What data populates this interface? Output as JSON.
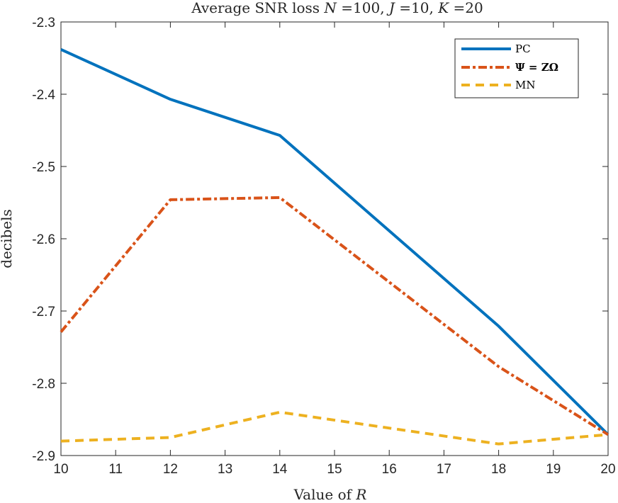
{
  "chart_data": {
    "type": "line",
    "title": "Average SNR loss N =100, J =10, K =20",
    "xlabel": "Value of R",
    "ylabel": "decibels",
    "xlim": [
      10,
      20
    ],
    "ylim": [
      -2.9,
      -2.3
    ],
    "xticks": [
      10,
      11,
      12,
      13,
      14,
      15,
      16,
      17,
      18,
      19,
      20
    ],
    "yticks": [
      -2.3,
      -2.4,
      -2.5,
      -2.6,
      -2.7,
      -2.8,
      -2.9
    ],
    "ytick_labels": [
      "-2.3",
      "-2.4",
      "-2.5",
      "-2.6",
      "-2.7",
      "-2.8",
      "-2.9"
    ],
    "x": [
      10,
      12,
      14,
      18,
      20
    ],
    "series": [
      {
        "name": "PC",
        "values": [
          -2.338,
          -2.407,
          -2.457,
          -2.721,
          -2.871
        ],
        "color": "#0072BD",
        "style": "solid"
      },
      {
        "name": "Ψ = ZΩ",
        "values": [
          -2.729,
          -2.546,
          -2.543,
          -2.777,
          -2.871
        ],
        "color": "#D95319",
        "style": "dashdot"
      },
      {
        "name": "MN",
        "values": [
          -2.88,
          -2.875,
          -2.84,
          -2.884,
          -2.871
        ],
        "color": "#EDB120",
        "style": "dashed"
      }
    ],
    "legend_position": "top-right",
    "grid": false
  }
}
